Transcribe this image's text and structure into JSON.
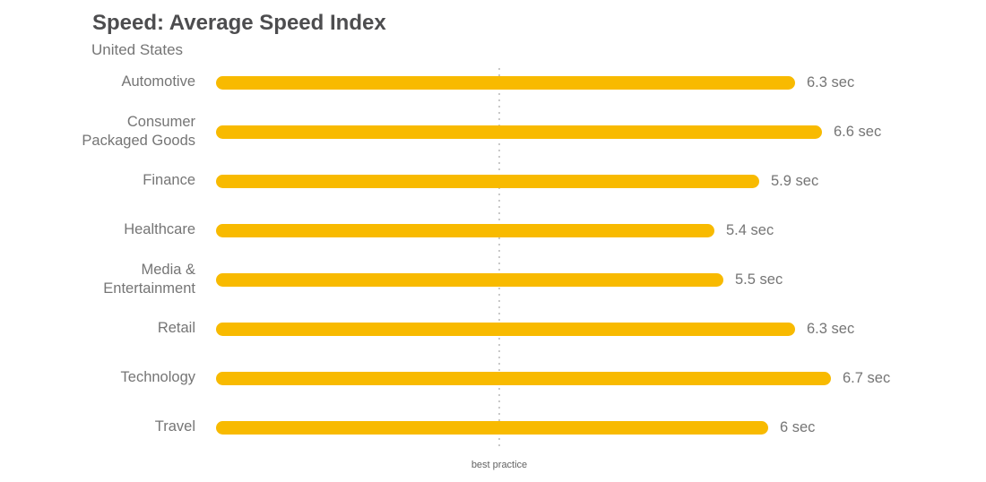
{
  "chart_data": {
    "type": "bar",
    "orientation": "horizontal",
    "title": "Speed: Average Speed Index",
    "subtitle": "United States",
    "unit": "sec",
    "categories": [
      "Automotive",
      "Consumer Packaged Goods",
      "Finance",
      "Healthcare",
      "Media & Entertainment",
      "Retail",
      "Technology",
      "Travel"
    ],
    "values": [
      6.3,
      6.6,
      5.9,
      5.4,
      5.5,
      6.3,
      6.7,
      6
    ],
    "value_labels": [
      "6.3 sec",
      "6.6 sec",
      "5.9 sec",
      "5.4 sec",
      "5.5 sec",
      "6.3 sec",
      "6.7 sec",
      "6 sec"
    ],
    "reference_line": {
      "label": "best practice",
      "value": 3
    },
    "xlim": [
      0,
      8.4
    ],
    "grid": false,
    "legend": false,
    "bar_color": "#F8BA00"
  },
  "colors": {
    "bar": "#F8BA00",
    "title_text": "#4D4D4F",
    "label_text": "#757575",
    "reference_dots": "#C9C9C9",
    "background": "#FFFFFF"
  }
}
